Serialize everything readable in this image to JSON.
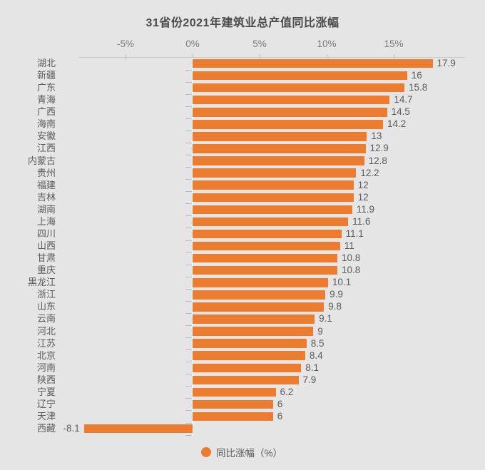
{
  "chart_data": {
    "type": "bar",
    "orientation": "horizontal",
    "title": "31省份2021年建筑业总产值同比涨幅",
    "legend_label": "同比涨幅（%）",
    "x_axis": {
      "tick_labels": [
        "-5%",
        "0%",
        "5%",
        "10%",
        "15%"
      ],
      "tick_values": [
        -5,
        0,
        5,
        10,
        15
      ],
      "range": [
        -8.5,
        20.3
      ],
      "position": "top"
    },
    "categories": [
      "湖北",
      "新疆",
      "广东",
      "青海",
      "广西",
      "海南",
      "安徽",
      "江西",
      "内蒙古",
      "贵州",
      "福建",
      "吉林",
      "湖南",
      "上海",
      "四川",
      "山西",
      "甘肃",
      "重庆",
      "黑龙江",
      "浙江",
      "山东",
      "云南",
      "河北",
      "江苏",
      "北京",
      "河南",
      "陕西",
      "宁夏",
      "辽宁",
      "天津",
      "西藏"
    ],
    "values": [
      17.9,
      16,
      15.8,
      14.7,
      14.5,
      14.2,
      13,
      12.9,
      12.8,
      12.2,
      12,
      12,
      11.9,
      11.6,
      11.1,
      11,
      10.8,
      10.8,
      10.1,
      9.9,
      9.8,
      9.1,
      9,
      8.5,
      8.4,
      8.1,
      7.9,
      6.2,
      6,
      6,
      -8.1
    ],
    "value_labels": [
      "17.9",
      "16",
      "15.8",
      "14.7",
      "14.5",
      "14.2",
      "13",
      "12.9",
      "12.8",
      "12.2",
      "12",
      "12",
      "11.9",
      "11.6",
      "11.1",
      "11",
      "10.8",
      "10.8",
      "10.1",
      "9.9",
      "9.8",
      "9.1",
      "9",
      "8.5",
      "8.4",
      "8.1",
      "7.9",
      "6.2",
      "6",
      "6",
      "-8.1"
    ],
    "legend_position": "bottom",
    "grid": "off",
    "colors": {
      "bar": "#EC7C30",
      "background": "#E6E5E5",
      "label_text": "#5C5A5A",
      "axis_text": "#7B7979",
      "tick": "#BFBDBD",
      "axis_line": "#CBC9C9",
      "zero_line": "#F4F3F3",
      "title_text": "#4C4A4A"
    }
  }
}
